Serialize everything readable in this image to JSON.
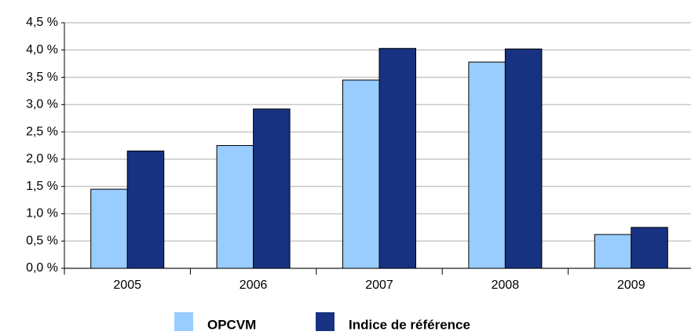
{
  "chart_data": {
    "type": "bar",
    "categories": [
      "2005",
      "2006",
      "2007",
      "2008",
      "2009"
    ],
    "series": [
      {
        "name": "OPCVM",
        "color": "#99ccff",
        "values": [
          1.45,
          2.25,
          3.45,
          3.78,
          0.62
        ]
      },
      {
        "name": "Indice de référence",
        "color": "#183282",
        "values": [
          2.15,
          2.92,
          4.03,
          4.02,
          0.75
        ]
      }
    ],
    "ylim": [
      0,
      4.5
    ],
    "yticks": [
      {
        "value": 0,
        "label": "0,0 %"
      },
      {
        "value": 0.5,
        "label": "0,5 %"
      },
      {
        "value": 1,
        "label": "1,0 %"
      },
      {
        "value": 1.5,
        "label": "1,5 %"
      },
      {
        "value": 2,
        "label": "2,0 %"
      },
      {
        "value": 2.5,
        "label": "2,5 %"
      },
      {
        "value": 3,
        "label": "3,0 %"
      },
      {
        "value": 3.5,
        "label": "3,5 %"
      },
      {
        "value": 4,
        "label": "4,0 %"
      },
      {
        "value": 4.5,
        "label": "4,5 %"
      }
    ],
    "grid": true
  }
}
